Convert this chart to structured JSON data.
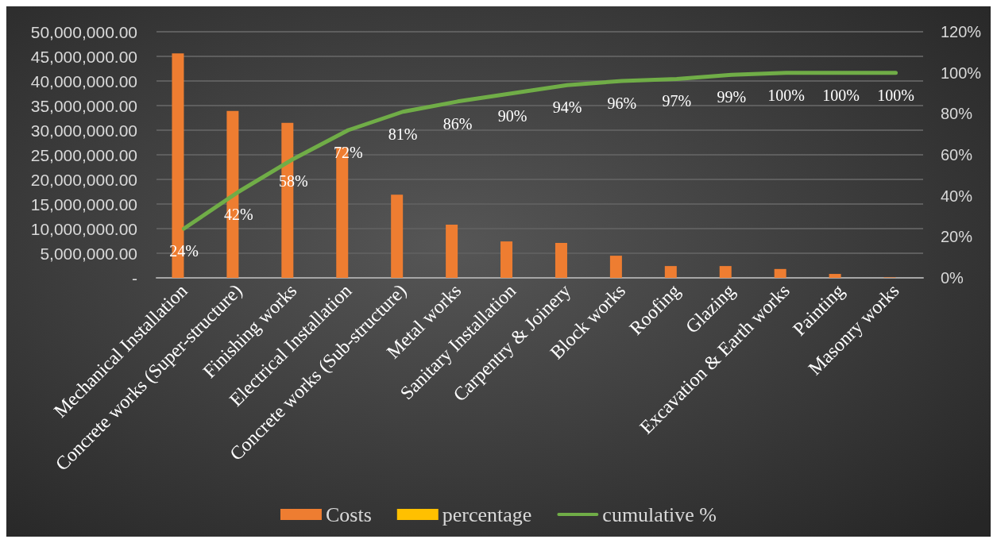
{
  "chart_data": {
    "type": "bar",
    "categories": [
      "Mechanical Installation",
      "Concrete works (Super-structure)",
      "Finishing works",
      "Electrical Installation",
      "Concrete works (Sub-structure)",
      "Metal works",
      "Sanitary Installation",
      "Carpentry & Joinery",
      "Block works",
      "Roofing",
      "Glazing",
      "Excavation & Earth works",
      "Painting",
      "Masonry works"
    ],
    "series": [
      {
        "name": "Costs",
        "color": "#ee7d31",
        "values": [
          45600000,
          33900000,
          31500000,
          26500000,
          16900000,
          10800000,
          7400000,
          7100000,
          4500000,
          2400000,
          2400000,
          1800000,
          800000,
          100000
        ]
      },
      {
        "name": "percentage",
        "color": "#ffc000",
        "values": [
          null,
          null,
          null,
          null,
          null,
          null,
          null,
          null,
          null,
          null,
          null,
          null,
          null,
          null
        ]
      },
      {
        "name": "cumulative %",
        "type": "line",
        "axis": "y2",
        "color": "#70ad47",
        "values": [
          24,
          42,
          58,
          72,
          81,
          86,
          90,
          94,
          96,
          97,
          99,
          100,
          100,
          100
        ],
        "value_labels": [
          "24%",
          "42%",
          "58%",
          "72%",
          "81%",
          "86%",
          "90%",
          "94%",
          "96%",
          "97%",
          "99%",
          "100%",
          "100%",
          "100%"
        ]
      }
    ],
    "ylim": [
      0,
      50000000
    ],
    "yticks": [
      {
        "value": 0,
        "label": "-"
      },
      {
        "value": 5000000,
        "label": "5,000,000.00"
      },
      {
        "value": 10000000,
        "label": "10,000,000.00"
      },
      {
        "value": 15000000,
        "label": "15,000,000.00"
      },
      {
        "value": 20000000,
        "label": "20,000,000.00"
      },
      {
        "value": 25000000,
        "label": "25,000,000.00"
      },
      {
        "value": 30000000,
        "label": "30,000,000.00"
      },
      {
        "value": 35000000,
        "label": "35,000,000.00"
      },
      {
        "value": 40000000,
        "label": "40,000,000.00"
      },
      {
        "value": 45000000,
        "label": "45,000,000.00"
      },
      {
        "value": 50000000,
        "label": "50,000,000.00"
      }
    ],
    "y2lim": [
      0,
      120
    ],
    "y2ticks": [
      {
        "value": 0,
        "label": "0%"
      },
      {
        "value": 20,
        "label": "20%"
      },
      {
        "value": 40,
        "label": "40%"
      },
      {
        "value": 60,
        "label": "60%"
      },
      {
        "value": 80,
        "label": "80%"
      },
      {
        "value": 100,
        "label": "100%"
      },
      {
        "value": 120,
        "label": "120%"
      }
    ],
    "grid": "y",
    "legend": "bottom",
    "marker": "none"
  }
}
